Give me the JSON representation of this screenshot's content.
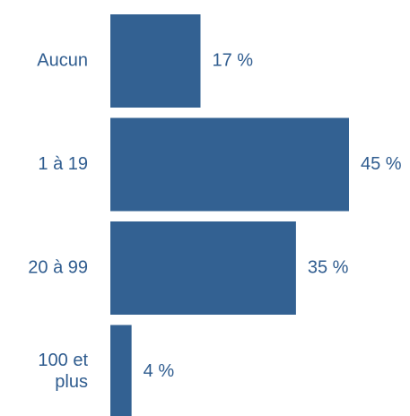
{
  "chart_data": {
    "type": "bar",
    "orientation": "horizontal",
    "categories": [
      "Aucun",
      "1 à 19",
      "20 à 99",
      "100 et plus"
    ],
    "category_lines": [
      [
        "Aucun"
      ],
      [
        "1 à 19"
      ],
      [
        "20 à 99"
      ],
      [
        "100 et",
        "plus"
      ]
    ],
    "values": [
      17,
      45,
      35,
      4
    ],
    "value_labels": [
      "17 %",
      "45 %",
      "35 %",
      "4 %"
    ],
    "unit": "%",
    "title": "",
    "xlabel": "",
    "ylabel": "",
    "xlim": [
      0,
      45
    ],
    "grid": false,
    "legend": "none",
    "colors": {
      "bar": "#336192",
      "text": "#2f5c8f"
    }
  }
}
